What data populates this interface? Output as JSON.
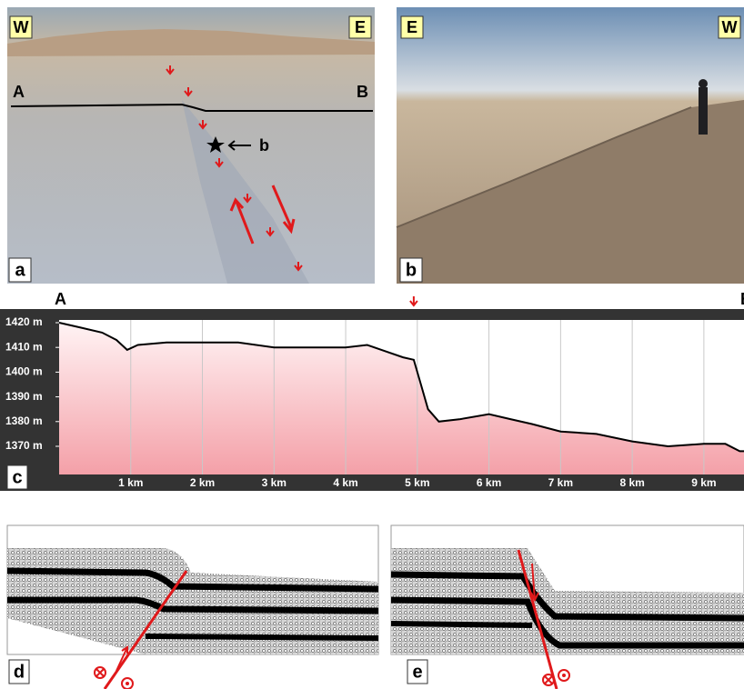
{
  "panel_a": {
    "label": "a",
    "west": "W",
    "east": "E",
    "start": "A",
    "end": "B",
    "pointer": "b"
  },
  "panel_b": {
    "label": "b",
    "left": "E",
    "right": "W"
  },
  "chart_data": {
    "type": "area",
    "panel_label": "c",
    "start_label": "A",
    "end_label": "B",
    "x": [
      0,
      0.3,
      0.6,
      0.8,
      0.95,
      1.1,
      1.5,
      2,
      2.5,
      3,
      3.5,
      4,
      4.3,
      4.5,
      4.8,
      4.95,
      5.05,
      5.15,
      5.3,
      5.6,
      6,
      6.3,
      6.6,
      7,
      7.5,
      8,
      8.5,
      9,
      9.3,
      9.5
    ],
    "values": [
      1420,
      1418,
      1416,
      1413,
      1409,
      1411,
      1412,
      1412,
      1412,
      1410,
      1410,
      1410,
      1411,
      1409,
      1406,
      1405,
      1395,
      1385,
      1380,
      1381,
      1383,
      1381,
      1379,
      1376,
      1375,
      1372,
      1370,
      1371,
      1371,
      1368
    ],
    "color": "#f4a0a8",
    "line_color": "#000000",
    "marker_x": 4.95,
    "xlim": [
      0,
      9.56
    ],
    "xticks": [
      {
        "value": 1,
        "label": "1 km"
      },
      {
        "value": 2,
        "label": "2 km"
      },
      {
        "value": 3,
        "label": "3 km"
      },
      {
        "value": 4,
        "label": "4 km"
      },
      {
        "value": 5,
        "label": "5 km"
      },
      {
        "value": 6,
        "label": "6 km"
      },
      {
        "value": 7,
        "label": "7 km"
      },
      {
        "value": 8,
        "label": "8 km"
      },
      {
        "value": 9,
        "label": "9 km"
      }
    ],
    "ylim": [
      1358.6,
      1421.1
    ],
    "yticks": [
      {
        "value": 1370,
        "label": "1370 m"
      },
      {
        "value": 1380,
        "label": "1380 m"
      },
      {
        "value": 1390,
        "label": "1390 m"
      },
      {
        "value": 1400,
        "label": "1400 m"
      },
      {
        "value": 1410,
        "label": "1410 m"
      },
      {
        "value": 1420,
        "label": "1420 m"
      }
    ],
    "grid": true
  },
  "panel_d": {
    "label": "d"
  },
  "panel_e": {
    "label": "e"
  }
}
